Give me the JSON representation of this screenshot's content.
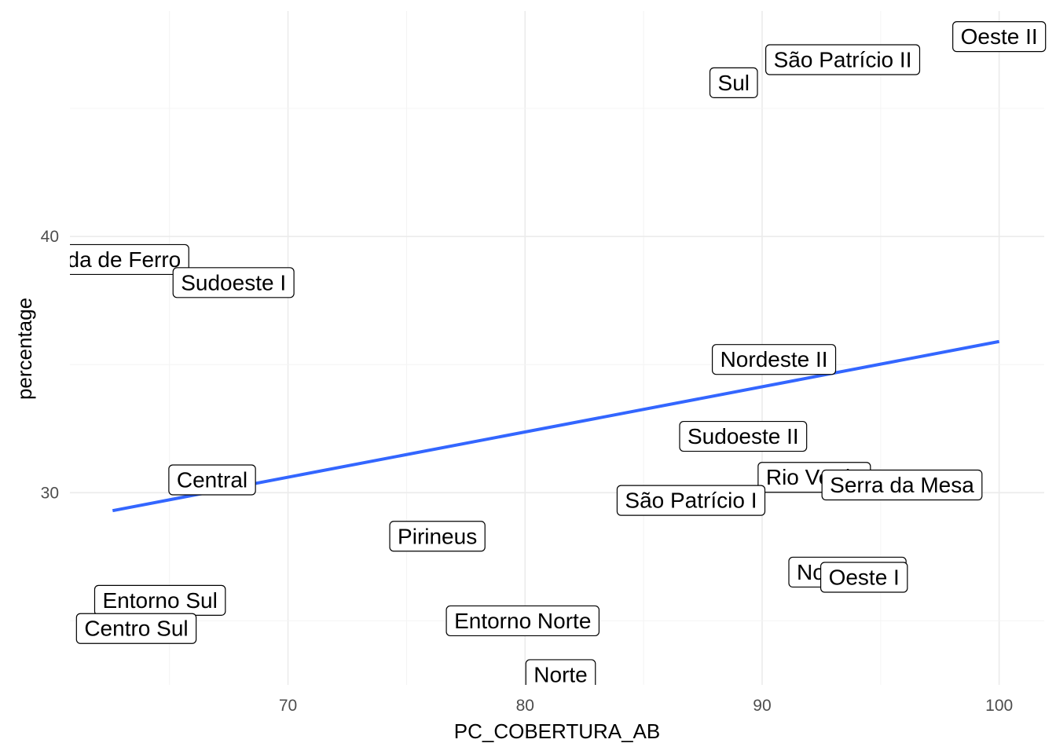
{
  "chart_data": {
    "type": "scatter",
    "title": "",
    "xlabel": "PC_COBERTURA_AB",
    "ylabel": "percentage",
    "xlim": [
      60.8,
      101.9
    ],
    "ylim": [
      22.5,
      48.8
    ],
    "x_ticks": [
      70,
      80,
      90,
      100
    ],
    "y_ticks": [
      30,
      40
    ],
    "grid": true,
    "trend_line": {
      "color": "#3366ff",
      "x": [
        62.6,
        100
      ],
      "y": [
        29.3,
        35.9
      ]
    },
    "points": [
      {
        "label": "Oeste II",
        "x": 100.0,
        "y": 47.8
      },
      {
        "label": "São Patrício II",
        "x": 93.4,
        "y": 46.9
      },
      {
        "label": "Sul",
        "x": 88.8,
        "y": 46.0
      },
      {
        "label": "Estrada de Ferro",
        "x": 62.0,
        "y": 39.1
      },
      {
        "label": "Sudoeste I",
        "x": 67.7,
        "y": 38.2
      },
      {
        "label": "Nordeste II",
        "x": 90.5,
        "y": 35.2
      },
      {
        "label": "Sudoeste II",
        "x": 89.2,
        "y": 32.2
      },
      {
        "label": "Rio Verde",
        "x": 92.2,
        "y": 30.6
      },
      {
        "label": "Serra da Mesa",
        "x": 95.9,
        "y": 30.3
      },
      {
        "label": "São Patrício I",
        "x": 87.0,
        "y": 29.7
      },
      {
        "label": "Central",
        "x": 66.8,
        "y": 30.5
      },
      {
        "label": "Pirineus",
        "x": 76.3,
        "y": 28.3
      },
      {
        "label": "Nordeste I",
        "x": 93.6,
        "y": 26.9
      },
      {
        "label": "Oeste I",
        "x": 94.3,
        "y": 26.7
      },
      {
        "label": "Entorno Sul",
        "x": 64.6,
        "y": 25.8
      },
      {
        "label": "Centro Sul",
        "x": 63.6,
        "y": 24.7
      },
      {
        "label": "Entorno Norte",
        "x": 79.9,
        "y": 25.0
      },
      {
        "label": "Norte",
        "x": 81.5,
        "y": 22.9
      }
    ]
  }
}
